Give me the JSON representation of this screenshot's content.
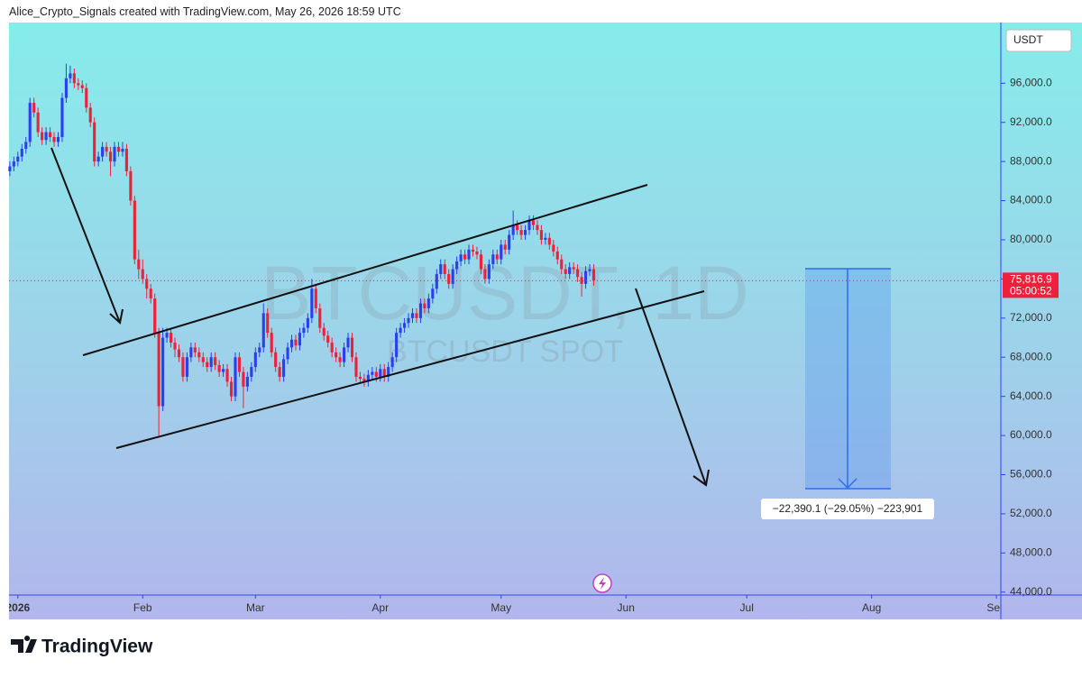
{
  "header": "Alice_Crypto_Signals created with TradingView.com, May 26, 2026 18:59 UTC",
  "footer_logo": "TradingView",
  "chart_data": {
    "type": "candlestick",
    "currency": "USDT",
    "watermark": "BTCUSDT, 1D",
    "watermark_sub": "BTCUSDT SPOT",
    "up_color": "#2b3ff0",
    "down_color": "#f0203a",
    "price_line": {
      "value": 75816.9,
      "label": "75,816.9",
      "countdown": "05:00:52"
    },
    "measure_label": "−22,390.1 (−29.05%) −223,901",
    "xlim": [
      -2.2,
      244.1
    ],
    "ylim": [
      43700,
      102200
    ],
    "xticks": [
      {
        "value": 0,
        "label": "2026"
      },
      {
        "value": 31,
        "label": "Feb"
      },
      {
        "value": 59,
        "label": "Mar"
      },
      {
        "value": 90,
        "label": "Apr"
      },
      {
        "value": 120,
        "label": "May"
      },
      {
        "value": 151,
        "label": "Jun"
      },
      {
        "value": 181,
        "label": "Jul"
      },
      {
        "value": 212,
        "label": "Aug"
      },
      {
        "value": 243,
        "label": "Sep"
      }
    ],
    "yticks": [
      {
        "value": 44000,
        "label": "44,000.0"
      },
      {
        "value": 48000,
        "label": "48,000.0"
      },
      {
        "value": 52000,
        "label": "52,000.0"
      },
      {
        "value": 56000,
        "label": "56,000.0"
      },
      {
        "value": 60000,
        "label": "60,000.0"
      },
      {
        "value": 64000,
        "label": "64,000.0"
      },
      {
        "value": 68000,
        "label": "68,000.0"
      },
      {
        "value": 72000,
        "label": "72,000.0"
      },
      {
        "value": 76000,
        "label": "76,000.0"
      },
      {
        "value": 80000,
        "label": "80,000.0"
      },
      {
        "value": 84000,
        "label": "84,000.0"
      },
      {
        "value": 88000,
        "label": "88,000.0"
      },
      {
        "value": 92000,
        "label": "92,000.0"
      },
      {
        "value": 96000,
        "label": "96,000.0"
      }
    ],
    "x": [
      -2,
      -1,
      0,
      1,
      2,
      3,
      4,
      5,
      6,
      7,
      8,
      9,
      10,
      11,
      12,
      13,
      14,
      15,
      16,
      17,
      18,
      19,
      20,
      21,
      22,
      23,
      24,
      25,
      26,
      27,
      28,
      29,
      30,
      31,
      32,
      33,
      34,
      35,
      36,
      37,
      38,
      39,
      40,
      41,
      42,
      43,
      44,
      45,
      46,
      47,
      48,
      49,
      50,
      51,
      52,
      53,
      54,
      55,
      56,
      57,
      58,
      59,
      60,
      61,
      62,
      63,
      64,
      65,
      66,
      67,
      68,
      69,
      70,
      71,
      72,
      73,
      74,
      75,
      76,
      77,
      78,
      79,
      80,
      81,
      82,
      83,
      84,
      85,
      86,
      87,
      88,
      89,
      90,
      91,
      92,
      93,
      94,
      95,
      96,
      97,
      98,
      99,
      100,
      101,
      102,
      103,
      104,
      105,
      106,
      107,
      108,
      109,
      110,
      111,
      112,
      113,
      114,
      115,
      116,
      117,
      118,
      119,
      120,
      121,
      122,
      123,
      124,
      125,
      126,
      127,
      128,
      129,
      130,
      131,
      132,
      133,
      134,
      135,
      136,
      137,
      138,
      139,
      140,
      141,
      142,
      143
    ],
    "open": [
      87000,
      87500,
      88000,
      88500,
      89300,
      90000,
      94000,
      93000,
      91000,
      90200,
      91000,
      90500,
      90000,
      90500,
      94500,
      96500,
      97000,
      96000,
      95800,
      95500,
      93500,
      92000,
      88000,
      88500,
      89500,
      89000,
      88000,
      89500,
      89000,
      89300,
      87000,
      84000,
      78000,
      77000,
      76000,
      75000,
      74000,
      70500,
      63000,
      70000,
      70500,
      69500,
      68800,
      68000,
      66000,
      68000,
      69000,
      68500,
      68000,
      67500,
      67000,
      68000,
      67200,
      66500,
      66800,
      65500,
      64000,
      68000,
      66500,
      65000,
      66000,
      67000,
      68500,
      69000,
      72500,
      70500,
      68500,
      67000,
      66000,
      67800,
      69000,
      69800,
      69200,
      70500,
      71000,
      72000,
      75000,
      73000,
      71000,
      70200,
      69500,
      68500,
      68000,
      67500,
      69000,
      70000,
      68000,
      66000,
      65800,
      65500,
      66200,
      66500,
      66000,
      66800,
      66000,
      67000,
      68000,
      70500,
      71000,
      71500,
      72000,
      72500,
      72000,
      73500,
      73000,
      74000,
      75000,
      76500,
      77500,
      76500,
      75500,
      77000,
      77800,
      78500,
      78000,
      79000,
      78800,
      78500,
      77000,
      76000,
      77500,
      78500,
      78000,
      79500,
      79000,
      80500,
      81500,
      81000,
      80500,
      81000,
      82000,
      81500,
      81000,
      80000,
      80200,
      79500,
      78800,
      78000,
      77000,
      76500,
      77200,
      77000,
      76200,
      75500,
      76800,
      77000
    ],
    "high": [
      88000,
      88500,
      89000,
      89800,
      90500,
      94500,
      94500,
      93500,
      91500,
      91500,
      91500,
      91000,
      91000,
      95000,
      98000,
      97800,
      97500,
      96500,
      96300,
      96000,
      94000,
      92500,
      89000,
      90000,
      90000,
      89500,
      90000,
      90000,
      90000,
      89800,
      87500,
      84500,
      79000,
      78000,
      76500,
      75500,
      74500,
      71000,
      71000,
      71000,
      71000,
      70000,
      69300,
      68500,
      68500,
      69500,
      69500,
      69000,
      68500,
      68000,
      68500,
      68500,
      67700,
      67300,
      67300,
      66000,
      68500,
      68500,
      67000,
      66500,
      67500,
      69000,
      69500,
      73500,
      73000,
      71000,
      69000,
      67500,
      68300,
      69500,
      70300,
      70300,
      71000,
      71500,
      72500,
      76000,
      75500,
      73500,
      71500,
      70700,
      70000,
      69000,
      68500,
      69500,
      70500,
      70500,
      68500,
      66500,
      66300,
      66700,
      67000,
      67000,
      67300,
      67300,
      67500,
      68500,
      71000,
      71500,
      72000,
      72500,
      73000,
      73000,
      74000,
      74000,
      74500,
      75500,
      77000,
      78000,
      78000,
      77000,
      77500,
      78300,
      79000,
      79000,
      79500,
      79500,
      79300,
      79000,
      77500,
      78000,
      79000,
      79000,
      80000,
      80000,
      81000,
      83000,
      82000,
      81500,
      81500,
      82500,
      82500,
      82000,
      81500,
      80700,
      80700,
      80000,
      79300,
      78500,
      77500,
      77700,
      77700,
      77500,
      76700,
      77300,
      77500,
      77500
    ],
    "low": [
      86500,
      87000,
      87500,
      88000,
      88800,
      89500,
      92500,
      90500,
      89700,
      89700,
      90000,
      89500,
      89500,
      90000,
      94000,
      96000,
      95500,
      95300,
      95000,
      93000,
      91500,
      87500,
      87500,
      88000,
      88500,
      86500,
      87500,
      88500,
      88500,
      86500,
      83500,
      77500,
      76000,
      75500,
      74000,
      73500,
      70000,
      60000,
      62500,
      69500,
      69000,
      68000,
      67500,
      65500,
      65500,
      67500,
      68000,
      67500,
      67000,
      66500,
      66500,
      66700,
      66000,
      66000,
      65000,
      63500,
      63500,
      66000,
      62800,
      64500,
      65500,
      66500,
      68000,
      68500,
      70000,
      68000,
      66500,
      65500,
      65500,
      67300,
      68500,
      68700,
      68700,
      70000,
      70500,
      71500,
      72500,
      70500,
      69700,
      69000,
      68000,
      67500,
      67000,
      67000,
      68500,
      67500,
      65500,
      65300,
      65000,
      65000,
      65700,
      65500,
      65500,
      65500,
      65500,
      66500,
      67500,
      70000,
      70500,
      71000,
      71500,
      71500,
      71500,
      72500,
      72500,
      73500,
      74500,
      76000,
      76000,
      75000,
      75000,
      76500,
      77300,
      77500,
      77500,
      78300,
      78000,
      76500,
      75500,
      75500,
      77000,
      77500,
      77500,
      78500,
      78500,
      80000,
      80500,
      80000,
      80000,
      80500,
      81000,
      80500,
      79500,
      79500,
      79000,
      78300,
      77500,
      76500,
      76000,
      76000,
      76500,
      75700,
      74200,
      75000,
      76300,
      75300
    ],
    "close": [
      87500,
      88000,
      88500,
      89300,
      90000,
      94000,
      93000,
      91000,
      90200,
      91000,
      90500,
      90000,
      90500,
      94500,
      96500,
      97000,
      96000,
      95800,
      95500,
      93500,
      92000,
      88000,
      88500,
      89500,
      89000,
      88000,
      89500,
      89000,
      89300,
      87000,
      84000,
      78000,
      77000,
      76000,
      75000,
      74000,
      70500,
      63000,
      70000,
      70500,
      69500,
      68800,
      68000,
      66000,
      68000,
      69000,
      68500,
      68000,
      67500,
      67000,
      68000,
      67200,
      66500,
      66800,
      65500,
      64000,
      68000,
      66500,
      65000,
      66000,
      67000,
      68500,
      69000,
      72500,
      70500,
      68500,
      67000,
      66000,
      67800,
      69000,
      69800,
      69200,
      70500,
      71000,
      72000,
      75000,
      73000,
      71000,
      70200,
      69500,
      68500,
      68000,
      67500,
      69000,
      70000,
      68000,
      66000,
      65800,
      65500,
      66200,
      66500,
      66000,
      66800,
      66000,
      67000,
      68000,
      70500,
      71000,
      71500,
      72000,
      72500,
      72000,
      73500,
      73000,
      74000,
      75000,
      76500,
      77500,
      76500,
      75500,
      77000,
      77800,
      78500,
      78000,
      79000,
      78800,
      78500,
      77000,
      76000,
      77500,
      78500,
      78000,
      79500,
      79000,
      80500,
      81500,
      81000,
      80500,
      81000,
      82000,
      81500,
      81000,
      80000,
      80200,
      79500,
      78800,
      78000,
      77000,
      76500,
      77200,
      77000,
      76200,
      75500,
      76800,
      77000,
      75816.9
    ]
  }
}
